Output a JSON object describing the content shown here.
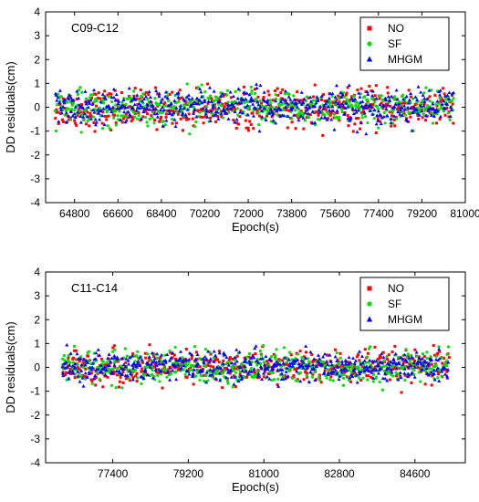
{
  "chart_data": [
    {
      "type": "scatter",
      "panel_label": "C09-C12",
      "xlabel": "Epoch(s)",
      "ylabel": "DD residuals(cm)",
      "xlim": [
        63600,
        81000
      ],
      "ylim": [
        -4,
        4
      ],
      "xticks": [
        64800,
        66600,
        68400,
        70200,
        72000,
        73800,
        75600,
        77400,
        79200,
        81000
      ],
      "yticks": [
        -4,
        -3,
        -2,
        -1,
        0,
        1,
        2,
        3,
        4
      ],
      "legend_position": "top-right",
      "series": [
        {
          "name": "NO",
          "color": "#ff0000",
          "marker": "square",
          "x_range": [
            64000,
            80500
          ],
          "mean": -0.05,
          "spread": 0.4
        },
        {
          "name": "SF",
          "color": "#00dd00",
          "marker": "circle",
          "x_range": [
            64000,
            80500
          ],
          "mean": 0.0,
          "spread": 0.35
        },
        {
          "name": "MHGM",
          "color": "#0000ff",
          "marker": "triangle",
          "x_range": [
            64000,
            80500
          ],
          "mean": 0.05,
          "spread": 0.35
        }
      ]
    },
    {
      "type": "scatter",
      "panel_label": "C11-C14",
      "xlabel": "Epoch(s)",
      "ylabel": "DD residuals(cm)",
      "xlim": [
        75800,
        85800
      ],
      "ylim": [
        -4,
        4
      ],
      "xticks": [
        77400,
        79200,
        81000,
        82800,
        84600
      ],
      "yticks": [
        -4,
        -3,
        -2,
        -1,
        0,
        1,
        2,
        3,
        4
      ],
      "legend_position": "top-right",
      "series": [
        {
          "name": "NO",
          "color": "#ff0000",
          "marker": "square",
          "x_range": [
            76200,
            85400
          ],
          "mean": 0.0,
          "spread": 0.35
        },
        {
          "name": "SF",
          "color": "#00dd00",
          "marker": "circle",
          "x_range": [
            76200,
            85400
          ],
          "mean": 0.0,
          "spread": 0.35
        },
        {
          "name": "MHGM",
          "color": "#0000ff",
          "marker": "triangle",
          "x_range": [
            76200,
            85400
          ],
          "mean": 0.05,
          "spread": 0.3
        }
      ]
    }
  ]
}
